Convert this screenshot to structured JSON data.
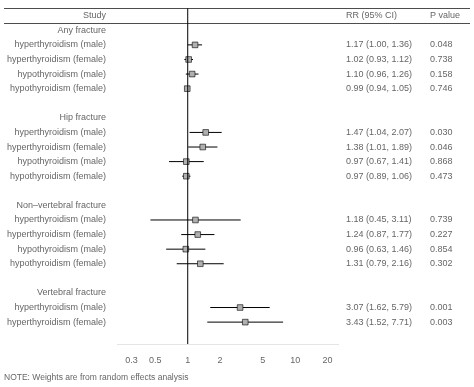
{
  "chart_data": {
    "type": "forest",
    "log": "x",
    "grid": false,
    "xlim": [
      0.22,
      25
    ],
    "xticks": [
      0.3,
      0.5,
      1,
      2,
      5,
      10,
      20
    ],
    "ref_line": 1.0,
    "color": "#b0b0b0",
    "line_color": "#000000",
    "marker": "square",
    "columns": {
      "study": "Study",
      "estimate": "RR (95% CI)",
      "p": "P value"
    },
    "note": "NOTE: Weights are from random effects analysis",
    "sections": [
      {
        "header": "Any fracture",
        "studies": [
          {
            "label": "hyperthyroidism (male)",
            "rr": 1.17,
            "lo": 1.0,
            "hi": 1.36,
            "p": "0.048",
            "ci_label": "1.17 (1.00, 1.36)"
          },
          {
            "label": "hyperthyroidism (female)",
            "rr": 1.02,
            "lo": 0.93,
            "hi": 1.12,
            "p": "0.738",
            "ci_label": "1.02 (0.93, 1.12)"
          },
          {
            "label": "hypothyroidism (male)",
            "rr": 1.1,
            "lo": 0.96,
            "hi": 1.26,
            "p": "0.158",
            "ci_label": "1.10 (0.96, 1.26)"
          },
          {
            "label": "hypothyroidism (female)",
            "rr": 0.99,
            "lo": 0.94,
            "hi": 1.05,
            "p": "0.746",
            "ci_label": "0.99 (0.94, 1.05)"
          }
        ]
      },
      {
        "header": "Hip fracture",
        "studies": [
          {
            "label": "hyperthyroidism (male)",
            "rr": 1.47,
            "lo": 1.04,
            "hi": 2.07,
            "p": "0.030",
            "ci_label": "1.47 (1.04, 2.07)"
          },
          {
            "label": "hyperthyroidism (female)",
            "rr": 1.38,
            "lo": 1.01,
            "hi": 1.89,
            "p": "0.046",
            "ci_label": "1.38 (1.01, 1.89)"
          },
          {
            "label": "hypothyroidism (male)",
            "rr": 0.97,
            "lo": 0.67,
            "hi": 1.41,
            "p": "0.868",
            "ci_label": "0.97 (0.67, 1.41)"
          },
          {
            "label": "hypothyroidism (female)",
            "rr": 0.97,
            "lo": 0.89,
            "hi": 1.06,
            "p": "0.473",
            "ci_label": "0.97 (0.89, 1.06)"
          }
        ]
      },
      {
        "header": "Non–vertebral fracture",
        "studies": [
          {
            "label": "hyperthyroidism (male)",
            "rr": 1.18,
            "lo": 0.45,
            "hi": 3.11,
            "p": "0.739",
            "ci_label": "1.18 (0.45, 3.11)"
          },
          {
            "label": "hyperthyroidism (female)",
            "rr": 1.24,
            "lo": 0.87,
            "hi": 1.77,
            "p": "0.227",
            "ci_label": "1.24 (0.87, 1.77)"
          },
          {
            "label": "hypothyroidism (male)",
            "rr": 0.96,
            "lo": 0.63,
            "hi": 1.46,
            "p": "0.854",
            "ci_label": "0.96 (0.63, 1.46)"
          },
          {
            "label": "hypothyroidism (female)",
            "rr": 1.31,
            "lo": 0.79,
            "hi": 2.16,
            "p": "0.302",
            "ci_label": "1.31 (0.79, 2.16)"
          }
        ]
      },
      {
        "header": "Vertebral fracture",
        "studies": [
          {
            "label": "hyperthyroidism (male)",
            "rr": 3.07,
            "lo": 1.62,
            "hi": 5.79,
            "p": "0.001",
            "ci_label": "3.07 (1.62, 5.79)"
          },
          {
            "label": "hyperthyroidism (female)",
            "rr": 3.43,
            "lo": 1.52,
            "hi": 7.71,
            "p": "0.003",
            "ci_label": "3.43 (1.52, 7.71)"
          }
        ]
      }
    ]
  }
}
